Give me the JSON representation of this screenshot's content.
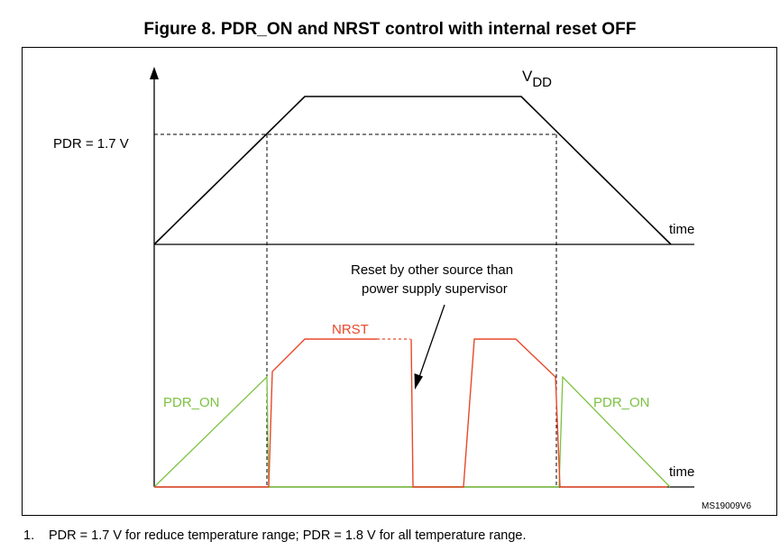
{
  "figure": {
    "title": "Figure 8. PDR_ON and NRST control with internal reset OFF",
    "code": "MS19009V6"
  },
  "labels": {
    "vdd_main": "V",
    "vdd_sub": "DD",
    "pdr_level": "PDR = 1.7 V",
    "time_top": "time",
    "time_bottom": "time",
    "nrst": "NRST",
    "pdr_on_left": "PDR_ON",
    "pdr_on_right": "PDR_ON",
    "reset_note_line1": "Reset by other source than",
    "reset_note_line2": "power supply supervisor"
  },
  "footnote": {
    "number": "1.",
    "text": "PDR = 1.7 V for reduce temperature range; PDR = 1.8 V for all temperature range."
  },
  "colors": {
    "nrst": "#e8482a",
    "pdr_on": "#7cc242",
    "axis": "#000000"
  }
}
